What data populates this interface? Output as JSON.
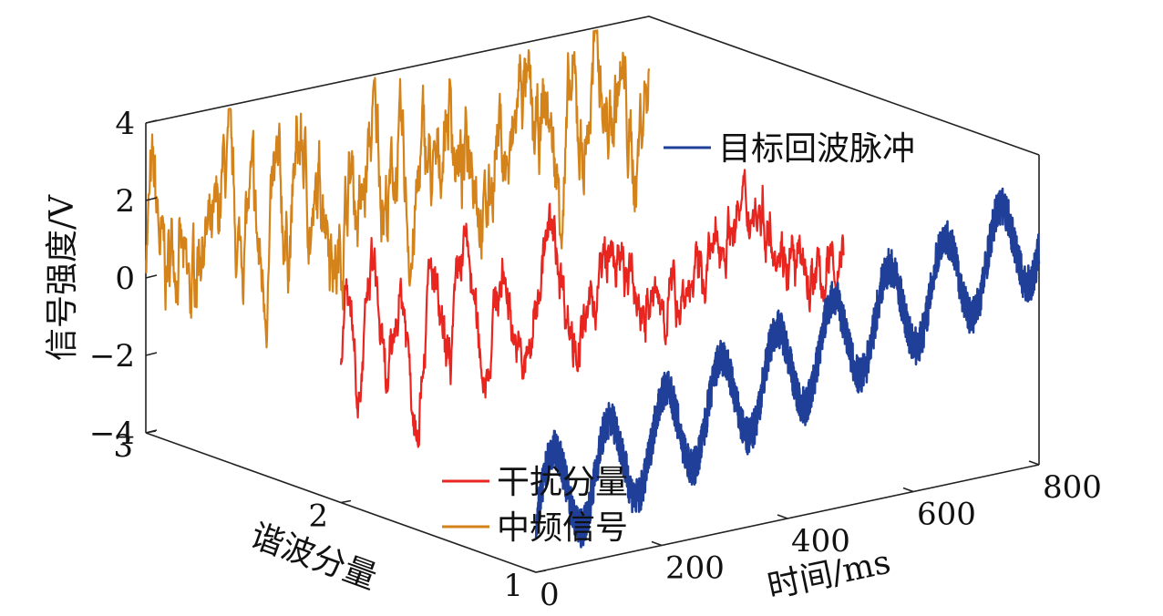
{
  "chart_data": {
    "type": "line",
    "subtype": "3d-waterfall",
    "title": "",
    "xlabel": "时间/ms",
    "ylabel": "谐波分量",
    "zlabel": "信号强度/V",
    "xlim": [
      0,
      800
    ],
    "ylim": [
      1,
      3
    ],
    "zlim": [
      -4,
      4
    ],
    "x_ticks": [
      "0",
      "200",
      "400",
      "600",
      "800"
    ],
    "y_ticks": [
      "1",
      "2",
      "3"
    ],
    "z_ticks": [
      "4",
      "2",
      "0",
      "−2",
      "−4"
    ],
    "grid": false,
    "series": [
      {
        "name": "目标回波脉冲",
        "color": "#1f3f99",
        "y_level": 1,
        "description_values": {
          "x_start": 0,
          "x_end": 800,
          "offset_start": -2.3,
          "offset_end": 2.0,
          "amplitude": 1.2,
          "cycles": 9
        }
      },
      {
        "name": "干扰分量",
        "color": "#e8251f",
        "y_level": 2,
        "description_values": {
          "x_start": 0,
          "x_end": 800,
          "mean": 0.0,
          "amplitude": 1.5
        }
      },
      {
        "name": "中频信号",
        "color": "#d4821a",
        "y_level": 3,
        "description_values": {
          "x_start": 0,
          "x_end": 800,
          "mean": 0.8,
          "amplitude": 1.6
        }
      }
    ],
    "legend": [
      {
        "label": "目标回波脉冲",
        "color": "#1f3f99"
      },
      {
        "label": "干扰分量",
        "color": "#e8251f"
      },
      {
        "label": "中频信号",
        "color": "#d4821a"
      }
    ]
  }
}
